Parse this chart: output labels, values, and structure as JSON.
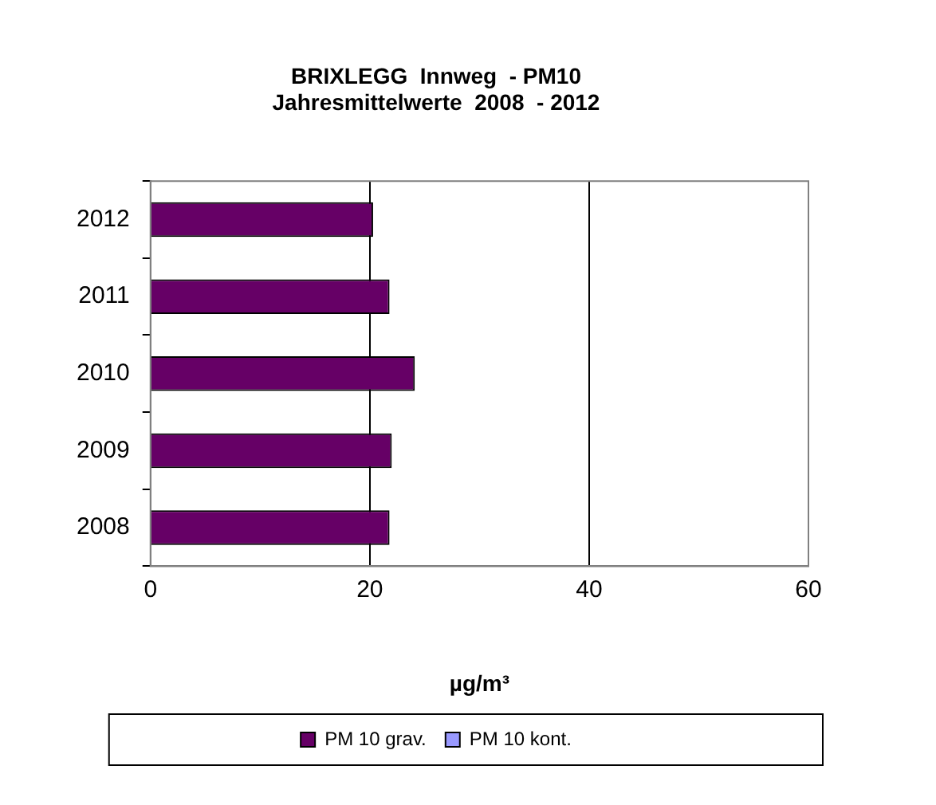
{
  "chart_data": {
    "type": "bar",
    "orientation": "horizontal",
    "title": [
      "BRIXLEGG  Innweg  - PM10",
      "Jahresmittelwerte  2008  - 2012"
    ],
    "xlabel": "µg/m³",
    "categories": [
      "2012",
      "2011",
      "2010",
      "2009",
      "2008"
    ],
    "series": [
      {
        "name": "PM 10 grav.",
        "color": "#660066",
        "values": [
          20.3,
          21.8,
          24.1,
          22.0,
          21.8
        ]
      },
      {
        "name": "PM 10 kont.",
        "color": "#9999ff",
        "values": [
          null,
          null,
          null,
          null,
          null
        ]
      }
    ],
    "xlim": [
      0,
      60
    ],
    "xticks": [
      0,
      20,
      40,
      60
    ],
    "grid": "x",
    "legend": "bottom"
  }
}
